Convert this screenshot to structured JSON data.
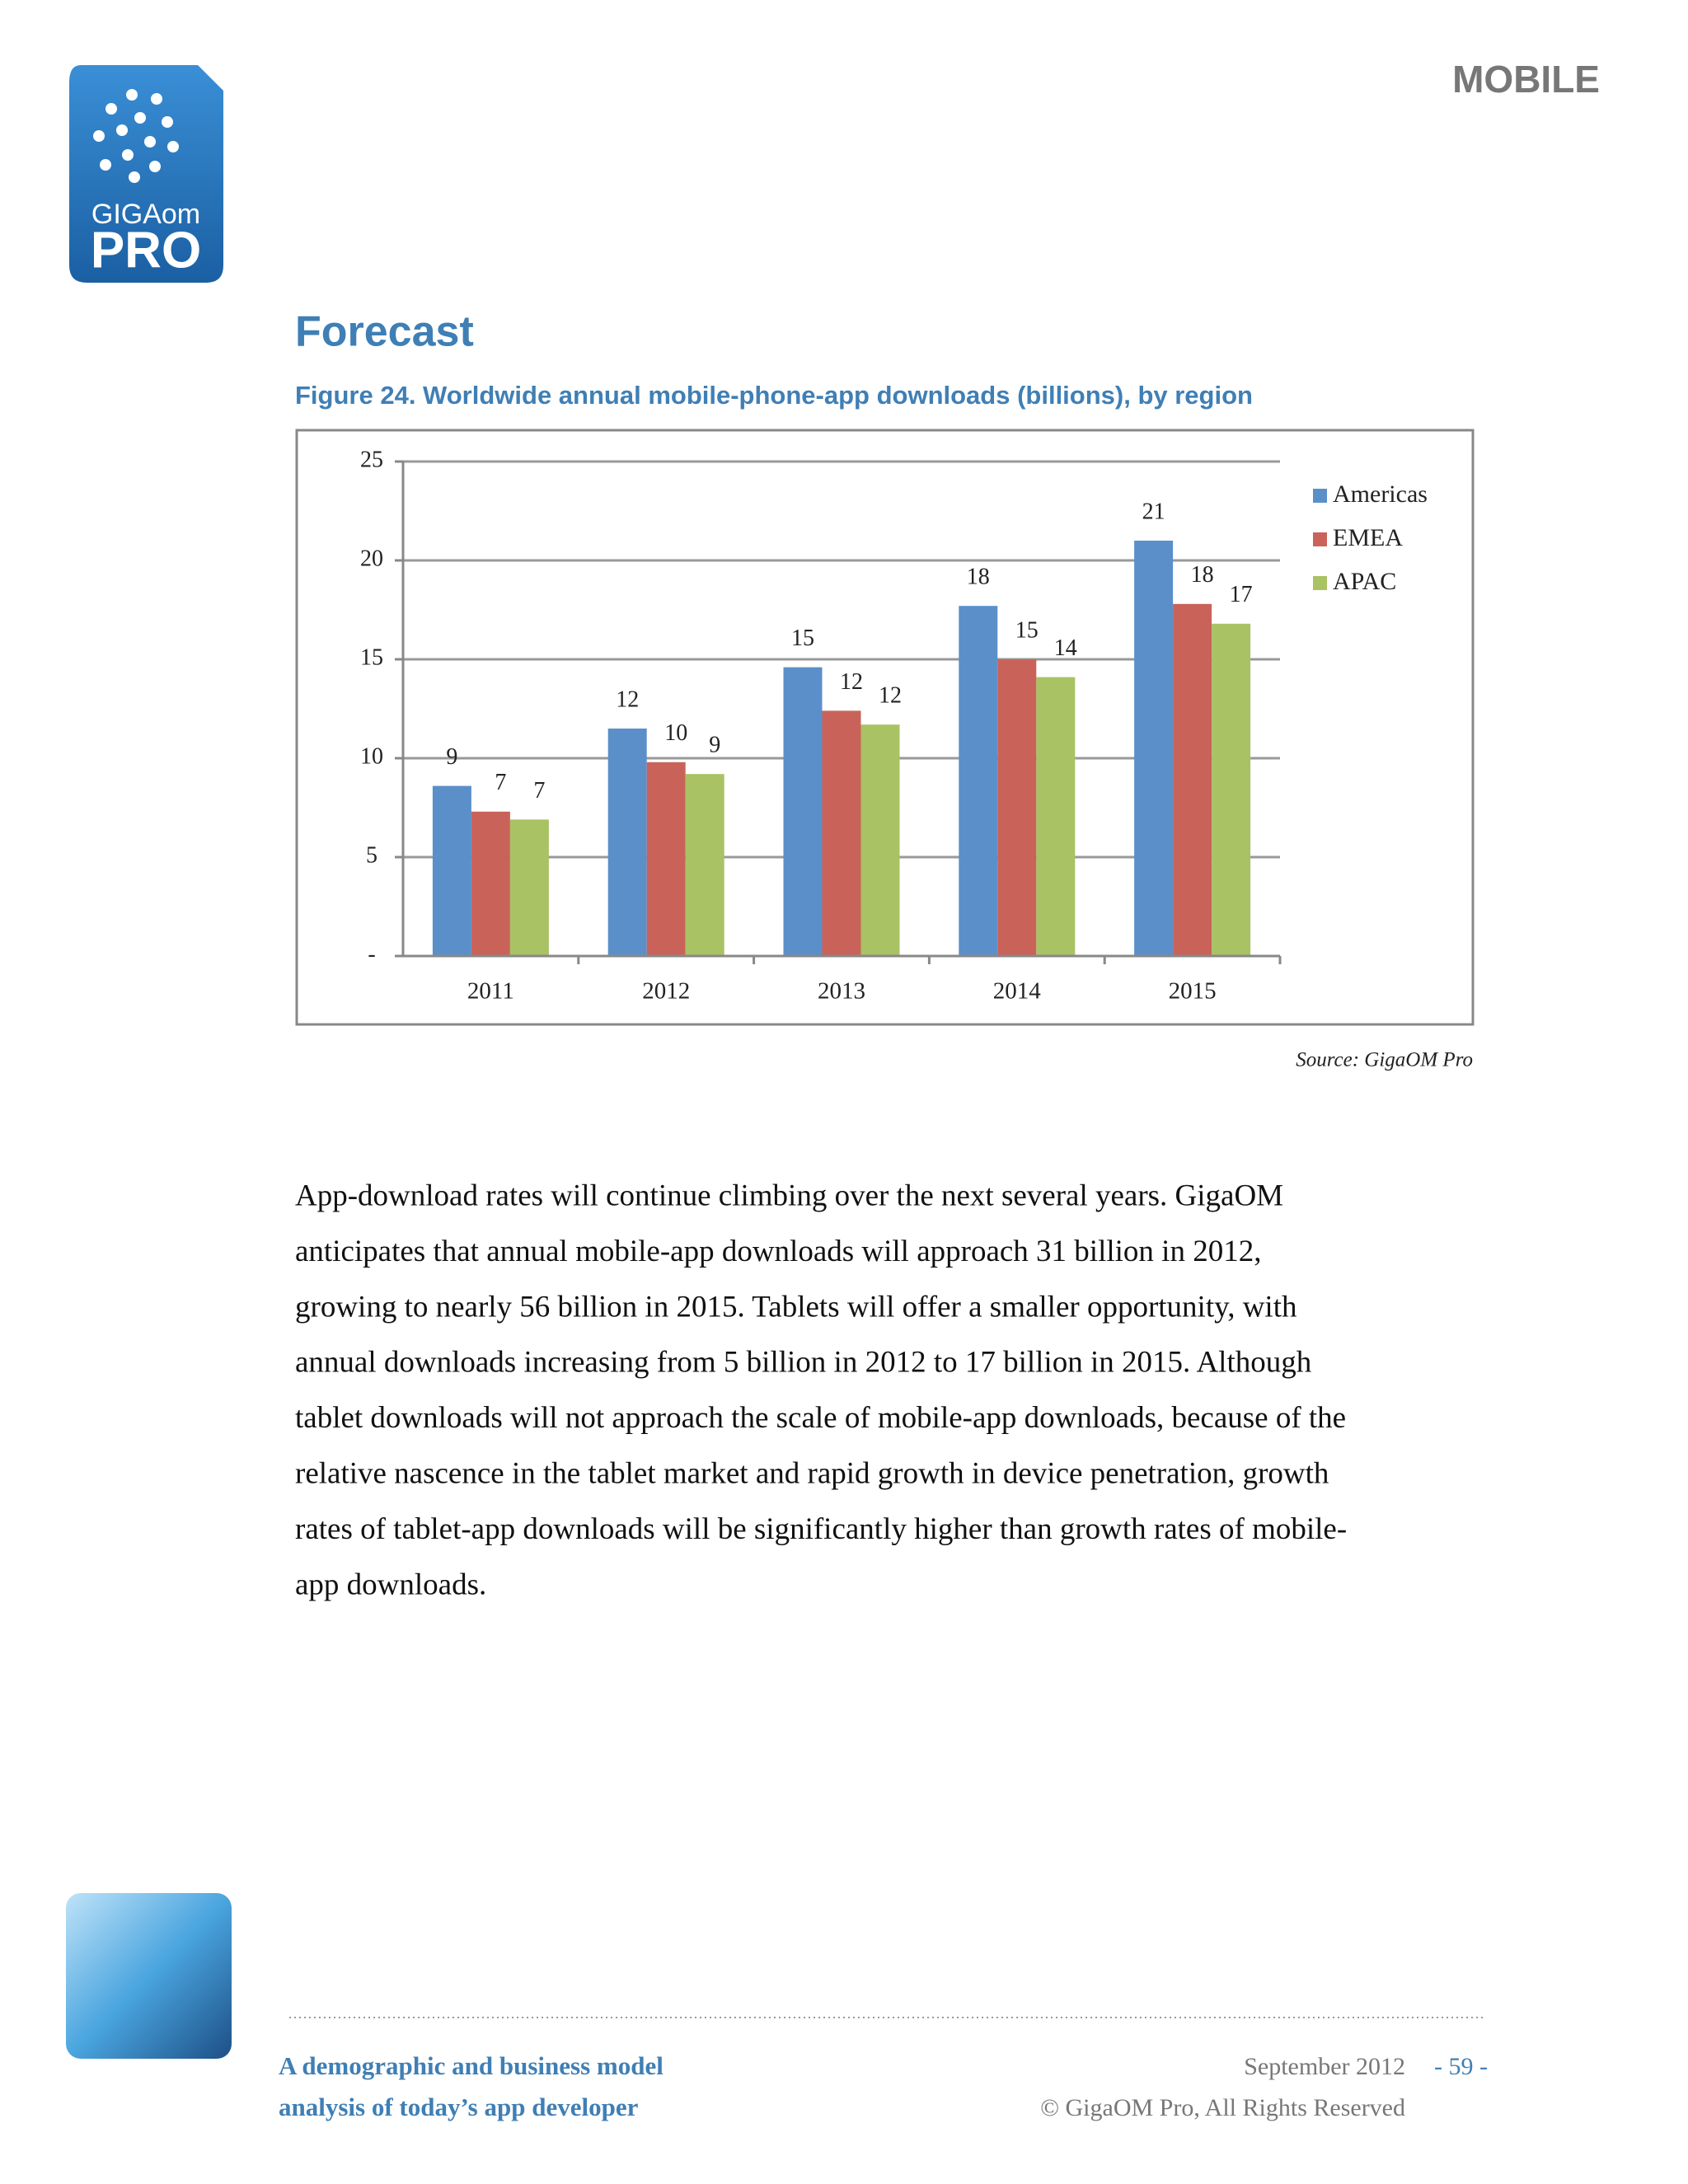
{
  "header": {
    "section": "MOBILE",
    "logo_top": "GIGAom",
    "logo_bottom": "PRO"
  },
  "heading": "Forecast",
  "figure_caption": "Figure 24. Worldwide annual mobile-phone-app downloads (billions), by region",
  "chart_data": {
    "type": "bar",
    "categories": [
      "2011",
      "2012",
      "2013",
      "2014",
      "2015"
    ],
    "series": [
      {
        "name": "Americas",
        "color": "#5b8fc9",
        "values": [
          8.6,
          11.5,
          14.6,
          17.7,
          21.0
        ],
        "value_labels": [
          "9",
          "12",
          "15",
          "18",
          "21"
        ]
      },
      {
        "name": "EMEA",
        "color": "#c9635a",
        "values": [
          7.3,
          9.8,
          12.4,
          15.0,
          17.8
        ],
        "value_labels": [
          "7",
          "10",
          "12",
          "15",
          "18"
        ]
      },
      {
        "name": "APAC",
        "color": "#a9c264",
        "values": [
          6.9,
          9.2,
          11.7,
          14.1,
          16.8
        ],
        "value_labels": [
          "7",
          "9",
          "12",
          "14",
          "17"
        ]
      }
    ],
    "ylim": [
      0,
      25
    ],
    "yticks": [
      {
        "value": 0,
        "label": "-"
      },
      5,
      10,
      15,
      20,
      25
    ],
    "grid": true,
    "legend": "right"
  },
  "source": "Source: GigaOM Pro",
  "paragraph": [
    "App-download rates will continue climbing over the next several years. GigaOM",
    "anticipates that annual mobile-app downloads will approach 31 billion in 2012,",
    "growing to nearly 56 billion in 2015. Tablets will offer a smaller opportunity, with",
    "annual downloads increasing from 5 billion in 2012 to 17 billion in 2015. Although",
    "tablet downloads will not approach the scale of mobile-app downloads, because of the",
    "relative nascence in the tablet market and rapid growth in device penetration, growth",
    "rates of tablet-app downloads will be significantly higher than growth rates of mobile-",
    "app downloads."
  ],
  "footer": {
    "title_line1": "A demographic and business model",
    "title_line2": "analysis of today’s app developer",
    "date": "September 2012",
    "page": "- 59 -",
    "copyright": "© GigaOM Pro, All Rights Reserved"
  }
}
